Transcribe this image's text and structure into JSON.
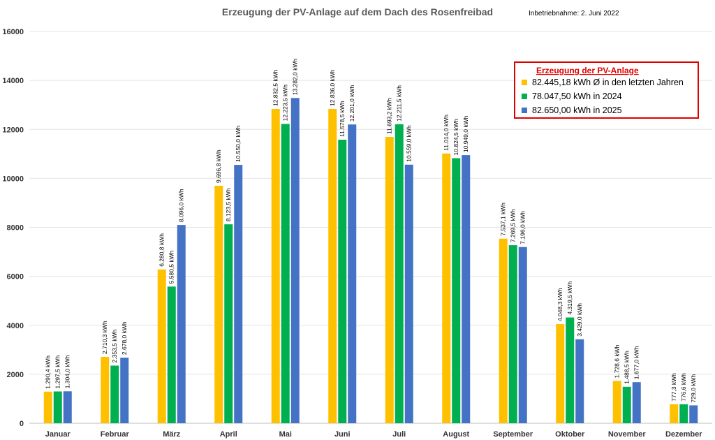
{
  "chart_data": {
    "type": "bar",
    "title": "Erzeugung der PV-Anlage auf dem Dach des Rosenfreibad",
    "subtitle": "Inbetriebnahme: 2. Juni 2022",
    "categories": [
      "Januar",
      "Februar",
      "März",
      "April",
      "Mai",
      "Juni",
      "Juli",
      "August",
      "September",
      "Oktober",
      "November",
      "Dezember"
    ],
    "ylim": [
      0,
      16000
    ],
    "yticks": [
      0,
      2000,
      4000,
      6000,
      8000,
      10000,
      12000,
      14000,
      16000
    ],
    "gridlines": true,
    "legend": {
      "title": "Erzeugung der PV-Anlage",
      "position": "top-right",
      "border_color": "#e00000"
    },
    "series": [
      {
        "name": "82.445,18 kWh Ø in den letzten Jahren",
        "color": "#ffc000",
        "values": [
          1290.4,
          2710.3,
          6280.8,
          9696.8,
          12832.5,
          12836.0,
          11693.2,
          11014.0,
          7537.1,
          4048.3,
          1728.6,
          777.3
        ],
        "labels": [
          "1.290,4 kWh",
          "2.710,3 kWh",
          "6.280,8 kWh",
          "9.696,8 kWh",
          "12.832,5 kWh",
          "12.836,0 kWh",
          "11.693,2 kWh",
          "11.014,0 kWh",
          "7.537,1 kWh",
          "4.048,3 kWh",
          "1.728,6 kWh",
          "777,3 kWh"
        ]
      },
      {
        "name": "78.047,50 kWh in 2024",
        "color": "#00b050",
        "values": [
          1297.5,
          2353.5,
          5580.5,
          8123.5,
          12223.5,
          11578.5,
          12211.5,
          10824.5,
          7269.5,
          4319.5,
          1488.5,
          776.6
        ],
        "labels": [
          "1.297,5 kWh",
          "2.353,5 kWh",
          "5.580,5 kWh",
          "8.123,5 kWh",
          "12.223,5 kWh",
          "11.578,5 kWh",
          "12.211,5 kWh",
          "10.824,5 kWh",
          "7.269,5 kWh",
          "4.319,5 kWh",
          "1.488,5 kWh",
          "776,6 kWh"
        ]
      },
      {
        "name": "82.650,00 kWh in 2025",
        "color": "#4472c4",
        "values": [
          1304.0,
          2678.0,
          8096.0,
          10550.0,
          13282.0,
          12201.0,
          10559.0,
          10949.0,
          7196.0,
          3429.0,
          1677.0,
          729.0
        ],
        "labels": [
          "1.304,0 kWh",
          "2.678,0 kWh",
          "8.096,0 kWh",
          "10.550,0 kWh",
          "13.282,0 kWh",
          "12.201,0 kWh",
          "10.559,0 kWh",
          "10.949,0 kWh",
          "7.196,0 kWh",
          "3.429,0 kWh",
          "1.677,0 kWh",
          "729,0 kWh"
        ]
      }
    ]
  }
}
